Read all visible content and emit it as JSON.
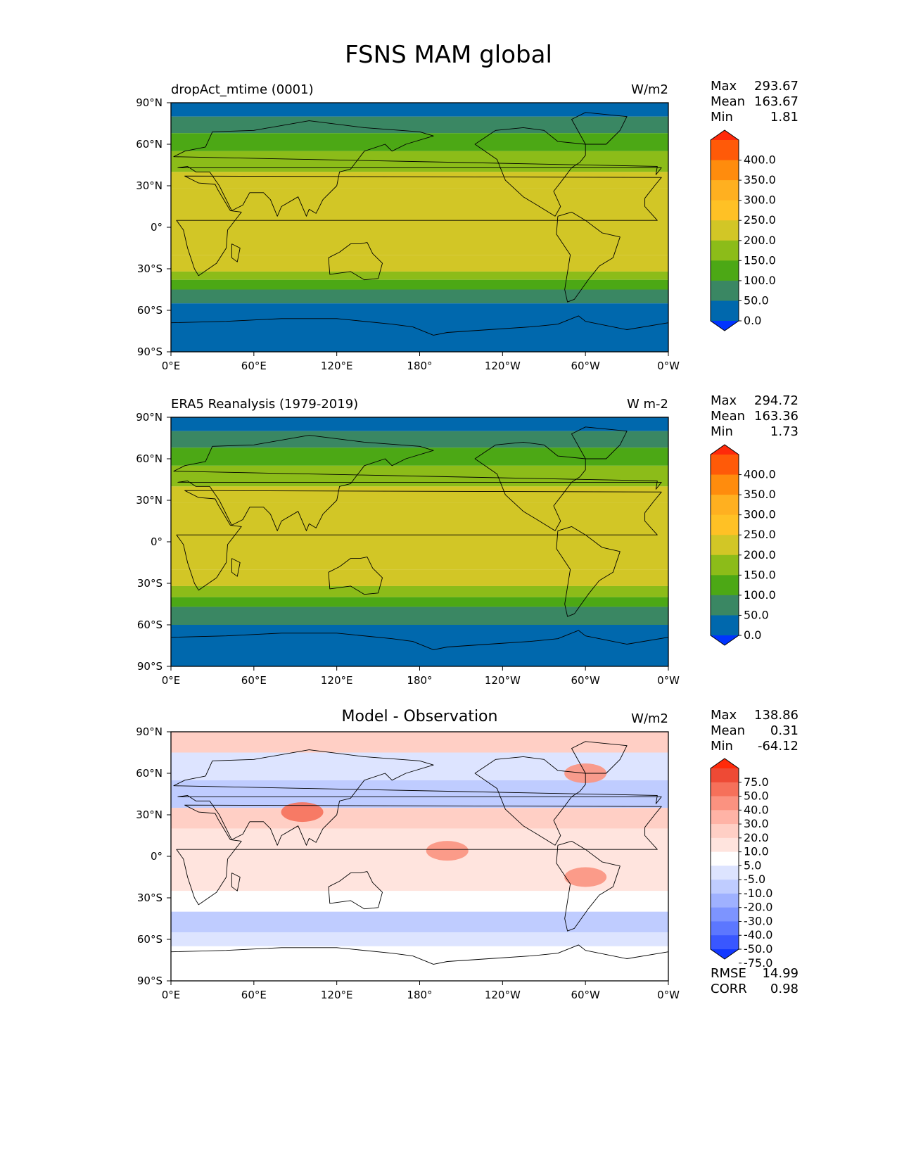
{
  "title": "FSNS MAM global",
  "x_ticks": [
    "0°E",
    "60°E",
    "120°E",
    "180°",
    "120°W",
    "60°W",
    "0°W"
  ],
  "y_ticks": [
    "90°N",
    "60°N",
    "30°N",
    "0°",
    "30°S",
    "60°S",
    "90°S"
  ],
  "panels": [
    {
      "title": "dropAct_mtime (0001)",
      "units": "W/m2",
      "stats": [
        {
          "label": "Max",
          "value": "293.67"
        },
        {
          "label": "Mean",
          "value": "163.67"
        },
        {
          "label": "Min",
          "value": "1.81"
        }
      ]
    },
    {
      "title": "ERA5 Reanalysis (1979-2019)",
      "units": "W m-2",
      "stats": [
        {
          "label": "Max",
          "value": "294.72"
        },
        {
          "label": "Mean",
          "value": "163.36"
        },
        {
          "label": "Min",
          "value": "1.73"
        }
      ]
    },
    {
      "title": "Model - Observation",
      "units": "W/m2",
      "stats": [
        {
          "label": "Max",
          "value": "138.86"
        },
        {
          "label": "Mean",
          "value": "0.31"
        },
        {
          "label": "Min",
          "value": "-64.12"
        }
      ],
      "extra_stats": [
        {
          "label": "RMSE",
          "value": "14.99"
        },
        {
          "label": "CORR",
          "value": "0.98"
        }
      ]
    }
  ],
  "colorbars": {
    "field": {
      "labels": [
        "400.0",
        "350.0",
        "300.0",
        "250.0",
        "200.0",
        "150.0",
        "100.0",
        "50.0",
        "0.0"
      ],
      "colors": [
        "#ff2a0a",
        "#ff5a08",
        "#ff8c0d",
        "#ffb020",
        "#ffc125",
        "#d2c626",
        "#8cbc19",
        "#4ca815",
        "#3a8763",
        "#0068ad",
        "#0034ff"
      ]
    },
    "diff": {
      "labels": [
        "75.0",
        "50.0",
        "40.0",
        "30.0",
        "20.0",
        "10.0",
        "5.0",
        "-5.0",
        "-10.0",
        "-20.0",
        "-30.0",
        "-40.0",
        "-50.0",
        "-75.0"
      ],
      "colors": [
        "#ff2a0a",
        "#ee4a35",
        "#f6705a",
        "#fb9280",
        "#ffb3a6",
        "#ffcfc5",
        "#ffe4de",
        "#ffffff",
        "#dde4ff",
        "#bfccff",
        "#9fb1ff",
        "#7d94ff",
        "#5c77ff",
        "#3957ff",
        "#1238ff"
      ]
    }
  },
  "chart_data": [
    {
      "type": "heatmap",
      "title": "dropAct_mtime (0001)",
      "units": "W/m2",
      "x_range": [
        0,
        360
      ],
      "y_range": [
        -90,
        90
      ],
      "zonal_mean_bands": [
        {
          "lat_from": 90,
          "lat_to": 80,
          "value": 25
        },
        {
          "lat_from": 80,
          "lat_to": 68,
          "value": 75
        },
        {
          "lat_from": 68,
          "lat_to": 55,
          "value": 125
        },
        {
          "lat_from": 55,
          "lat_to": 40,
          "value": 175
        },
        {
          "lat_from": 40,
          "lat_to": 28,
          "value": 210
        },
        {
          "lat_from": 28,
          "lat_to": 15,
          "value": 235
        },
        {
          "lat_from": 15,
          "lat_to": -20,
          "value": 225
        },
        {
          "lat_from": -20,
          "lat_to": -32,
          "value": 200
        },
        {
          "lat_from": -32,
          "lat_to": -38,
          "value": 160
        },
        {
          "lat_from": -38,
          "lat_to": -45,
          "value": 125
        },
        {
          "lat_from": -45,
          "lat_to": -55,
          "value": 75
        },
        {
          "lat_from": -55,
          "lat_to": -90,
          "value": 25
        }
      ],
      "stats": {
        "max": 293.67,
        "mean": 163.67,
        "min": 1.81
      }
    },
    {
      "type": "heatmap",
      "title": "ERA5 Reanalysis (1979-2019)",
      "units": "W m-2",
      "x_range": [
        0,
        360
      ],
      "y_range": [
        -90,
        90
      ],
      "zonal_mean_bands": [
        {
          "lat_from": 90,
          "lat_to": 80,
          "value": 25
        },
        {
          "lat_from": 80,
          "lat_to": 68,
          "value": 75
        },
        {
          "lat_from": 68,
          "lat_to": 55,
          "value": 125
        },
        {
          "lat_from": 55,
          "lat_to": 40,
          "value": 175
        },
        {
          "lat_from": 40,
          "lat_to": 28,
          "value": 205
        },
        {
          "lat_from": 28,
          "lat_to": 15,
          "value": 230
        },
        {
          "lat_from": 15,
          "lat_to": -20,
          "value": 220
        },
        {
          "lat_from": -20,
          "lat_to": -32,
          "value": 200
        },
        {
          "lat_from": -32,
          "lat_to": -40,
          "value": 160
        },
        {
          "lat_from": -40,
          "lat_to": -47,
          "value": 125
        },
        {
          "lat_from": -47,
          "lat_to": -60,
          "value": 75
        },
        {
          "lat_from": -60,
          "lat_to": -90,
          "value": 25
        }
      ],
      "stats": {
        "max": 294.72,
        "mean": 163.36,
        "min": 1.73
      }
    },
    {
      "type": "heatmap",
      "title": "Model - Observation",
      "units": "W/m2",
      "x_range": [
        0,
        360
      ],
      "y_range": [
        -90,
        90
      ],
      "zonal_mean_bands": [
        {
          "lat_from": 90,
          "lat_to": 75,
          "value": 12
        },
        {
          "lat_from": 75,
          "lat_to": 55,
          "value": -8
        },
        {
          "lat_from": 55,
          "lat_to": 35,
          "value": -12
        },
        {
          "lat_from": 35,
          "lat_to": 20,
          "value": 10
        },
        {
          "lat_from": 20,
          "lat_to": 0,
          "value": 8
        },
        {
          "lat_from": 0,
          "lat_to": -25,
          "value": 6
        },
        {
          "lat_from": -25,
          "lat_to": -40,
          "value": 4
        },
        {
          "lat_from": -40,
          "lat_to": -55,
          "value": -18
        },
        {
          "lat_from": -55,
          "lat_to": -65,
          "value": -8
        },
        {
          "lat_from": -65,
          "lat_to": -90,
          "value": 2
        }
      ],
      "anomalies": [
        {
          "lon": 95,
          "lat": 32,
          "value": 45
        },
        {
          "lon": 200,
          "lat": 4,
          "value": 30
        },
        {
          "lon": 300,
          "lat": -15,
          "value": 30
        },
        {
          "lon": 300,
          "lat": 60,
          "value": 30
        }
      ],
      "stats": {
        "max": 138.86,
        "mean": 0.31,
        "min": -64.12,
        "rmse": 14.99,
        "corr": 0.98
      }
    }
  ]
}
